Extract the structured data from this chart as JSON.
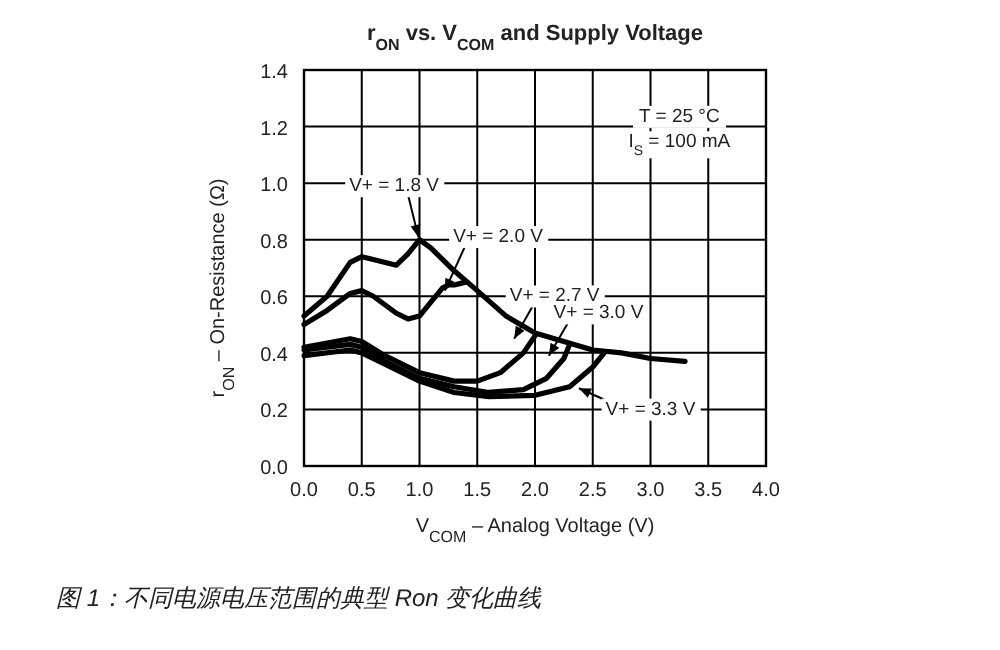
{
  "chart_data": {
    "type": "line",
    "title": "r$_{ON}$ vs. V$_{COM}$ and Supply Voltage",
    "xlabel": "V$_{COM}$ – Analog Voltage (V)",
    "ylabel": "r$_{ON}$ – On-Resistance (Ω)",
    "xlim": [
      0,
      4
    ],
    "ylim": [
      0,
      1.4
    ],
    "xticks": [
      {
        "value": 0,
        "label": "0.0"
      },
      0.5,
      {
        "value": 1,
        "label": "1.0"
      },
      1.5,
      {
        "value": 2,
        "label": "2.0"
      },
      2.5,
      {
        "value": 3,
        "label": "3.0"
      },
      3.5,
      {
        "value": 4,
        "label": "4.0"
      }
    ],
    "yticks": [
      {
        "value": 0,
        "label": "0.0"
      },
      0.2,
      0.4,
      0.6,
      0.8,
      {
        "value": 1,
        "label": "1.0"
      },
      1.2,
      1.4
    ],
    "grid": true,
    "marker": "none",
    "line_style": "solid",
    "series": [
      {
        "name": "V+ = 1.8 V",
        "color": "#000000",
        "x": [
          0,
          0.2,
          0.4,
          0.5,
          0.6,
          0.8,
          0.9,
          1.0,
          1.1,
          1.3,
          1.5,
          1.75,
          2.0,
          2.25,
          2.5,
          2.75,
          3.0,
          3.3
        ],
        "values": [
          0.53,
          0.6,
          0.72,
          0.74,
          0.73,
          0.71,
          0.75,
          0.8,
          0.77,
          0.69,
          0.62,
          0.53,
          0.47,
          0.44,
          0.41,
          0.4,
          0.38,
          0.37
        ]
      },
      {
        "name": "V+ = 2.0 V",
        "color": "#000000",
        "x": [
          0,
          0.2,
          0.4,
          0.5,
          0.6,
          0.8,
          0.9,
          1.0,
          1.1,
          1.2,
          1.25,
          1.3,
          1.4
        ],
        "values": [
          0.5,
          0.55,
          0.61,
          0.62,
          0.6,
          0.54,
          0.52,
          0.53,
          0.58,
          0.63,
          0.64,
          0.64,
          0.65
        ]
      },
      {
        "name": "V+ = 2.7 V",
        "color": "#000000",
        "x": [
          0,
          0.4,
          0.5,
          0.7,
          1.0,
          1.3,
          1.5,
          1.7,
          1.9,
          2.0
        ],
        "values": [
          0.42,
          0.45,
          0.44,
          0.39,
          0.33,
          0.3,
          0.3,
          0.33,
          0.4,
          0.46
        ]
      },
      {
        "name": "V+ = 3.0 V",
        "color": "#000000",
        "x": [
          0,
          0.4,
          0.5,
          0.7,
          1.0,
          1.3,
          1.6,
          1.9,
          2.1,
          2.25,
          2.3
        ],
        "values": [
          0.41,
          0.43,
          0.42,
          0.37,
          0.31,
          0.28,
          0.26,
          0.27,
          0.31,
          0.38,
          0.43
        ]
      },
      {
        "name": "V+ = 3.3 V",
        "color": "#000000",
        "x": [
          0,
          0.4,
          0.5,
          0.7,
          1.0,
          1.3,
          1.6,
          2.0,
          2.3,
          2.5,
          2.6
        ],
        "values": [
          0.39,
          0.41,
          0.4,
          0.36,
          0.3,
          0.26,
          0.245,
          0.25,
          0.28,
          0.35,
          0.4
        ]
      }
    ],
    "annotations": [
      "T = 25 °C",
      "I$_{S}$ = 100 mA",
      "图 1：不同电源电压范围的典型 Ron 变化曲线"
    ]
  }
}
